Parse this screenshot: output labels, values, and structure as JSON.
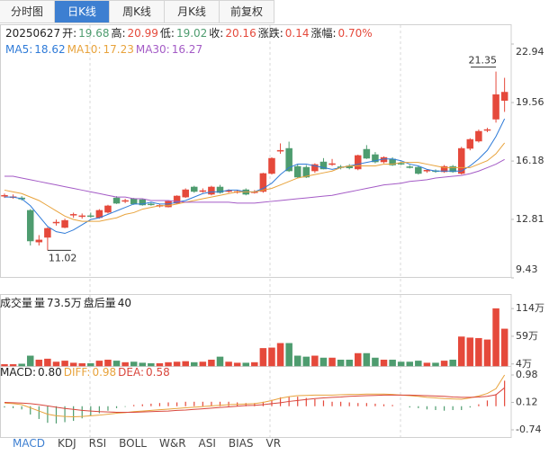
{
  "tabs": [
    "分时图",
    "日K线",
    "周K线",
    "月K线",
    "前复权"
  ],
  "indicator_tabs": [
    "MACD",
    "KDJ",
    "RSI",
    "BOLL",
    "W&R",
    "ASI",
    "BIAS",
    "VR"
  ],
  "chart_data": {
    "type": "candlestick",
    "categories": [
      null,
      null,
      null,
      null,
      null,
      null,
      null,
      null,
      null,
      null,
      null,
      null,
      null,
      null,
      null,
      null,
      null,
      null,
      null,
      null,
      null,
      null,
      null,
      null,
      null,
      null,
      null,
      null,
      null,
      null,
      null,
      null,
      null,
      null,
      null,
      null,
      null,
      null,
      null,
      null,
      null,
      null,
      null,
      null,
      null,
      null,
      null,
      null,
      null,
      null,
      null,
      null,
      null,
      null,
      null,
      null,
      null,
      null,
      "20250627"
    ],
    "ohlc_labels": [
      "开:",
      "高:",
      "低:",
      "收:"
    ],
    "open": [
      14.15,
      14.1,
      14.05,
      13.33,
      11.5,
      11.77,
      12.6,
      12.34,
      13.05,
      13.0,
      13.02,
      12.91,
      13.22,
      14.05,
      13.85,
      14.0,
      13.95,
      13.7,
      13.6,
      13.53,
      13.74,
      14.1,
      14.68,
      14.45,
      14.26,
      14.68,
      14.45,
      14.4,
      14.52,
      14.38,
      14.42,
      15.46,
      16.75,
      16.91,
      15.87,
      15.82,
      15.61,
      16.13,
      16.0,
      15.85,
      15.9,
      15.72,
      16.86,
      16.55,
      16.13,
      16.3,
      16.05,
      15.85,
      15.82,
      15.6,
      15.62,
      15.56,
      15.87,
      15.46,
      16.91,
      17.33,
      17.95,
      18.6,
      19.68
    ],
    "high": [
      14.3,
      14.25,
      14.15,
      13.4,
      11.9,
      12.35,
      12.8,
      12.85,
      13.2,
      13.15,
      13.2,
      13.4,
      13.65,
      14.15,
      14.0,
      14.05,
      14.0,
      13.8,
      13.7,
      13.9,
      14.2,
      14.6,
      14.75,
      14.6,
      14.75,
      14.8,
      14.55,
      14.5,
      14.6,
      14.5,
      15.5,
      16.4,
      17.2,
      17.3,
      16.0,
      15.95,
      16.05,
      16.35,
      16.3,
      15.95,
      16.0,
      16.55,
      17.1,
      16.7,
      16.45,
      16.4,
      16.15,
      15.95,
      15.9,
      15.7,
      15.7,
      15.95,
      15.95,
      17.0,
      17.5,
      18.0,
      18.1,
      21.35,
      20.99
    ],
    "low": [
      14.05,
      14.0,
      13.9,
      11.3,
      11.3,
      11.02,
      12.45,
      12.3,
      12.9,
      12.85,
      12.9,
      12.85,
      13.15,
      13.7,
      13.75,
      13.65,
      13.6,
      13.6,
      13.5,
      13.5,
      13.7,
      14.05,
      14.35,
      14.35,
      14.2,
      14.3,
      14.35,
      14.3,
      14.2,
      14.3,
      14.35,
      15.4,
      16.6,
      15.55,
      15.2,
      15.2,
      15.5,
      15.7,
      15.9,
      15.7,
      15.7,
      15.65,
      16.3,
      16.05,
      16.05,
      15.9,
      15.95,
      15.75,
      15.4,
      15.5,
      15.5,
      15.5,
      15.5,
      15.4,
      16.8,
      17.25,
      17.85,
      18.4,
      19.02
    ],
    "close": [
      14.2,
      14.12,
      13.98,
      11.56,
      11.62,
      12.29,
      12.65,
      12.75,
      13.1,
      13.02,
      13.0,
      13.33,
      13.59,
      13.74,
      13.9,
      13.7,
      13.64,
      13.69,
      13.62,
      13.85,
      14.16,
      14.52,
      14.42,
      14.47,
      14.68,
      14.36,
      14.47,
      14.42,
      14.26,
      14.4,
      15.46,
      16.34,
      16.8,
      15.61,
      15.25,
      15.25,
      15.98,
      15.72,
      16.03,
      15.8,
      15.78,
      16.5,
      16.34,
      16.13,
      16.39,
      15.95,
      16.03,
      15.82,
      15.46,
      15.65,
      15.6,
      15.87,
      15.56,
      16.91,
      17.43,
      17.9,
      18.0,
      20.02,
      20.16
    ],
    "change": {
      "label": "涨跌:",
      "value": 0.14
    },
    "change_pct": {
      "label": "涨幅:",
      "value": 0.7,
      "value_label": "0.70%"
    },
    "up_color": "#e5493b",
    "down_color": "#4e9c6f",
    "ylim": [
      9.43,
      22.94
    ],
    "yticks": [
      22.94,
      19.56,
      16.18,
      12.81,
      9.43
    ],
    "grid": false,
    "ma": [
      {
        "name": "MA5:",
        "color": "#2f7bd8",
        "values": [
          14.1,
          14.1,
          14.0,
          13.6,
          13.0,
          12.4,
          12.1,
          12.0,
          12.2,
          12.5,
          12.8,
          12.9,
          13.1,
          13.3,
          13.5,
          13.7,
          13.7,
          13.8,
          13.7,
          13.7,
          13.8,
          13.9,
          14.1,
          14.3,
          14.4,
          14.4,
          14.5,
          14.5,
          14.4,
          14.4,
          14.6,
          14.9,
          15.4,
          15.8,
          16.0,
          16.0,
          15.9,
          15.8,
          15.7,
          15.8,
          15.9,
          16.0,
          16.1,
          16.2,
          16.3,
          16.3,
          16.2,
          16.0,
          15.9,
          15.7,
          15.6,
          15.6,
          15.6,
          15.6,
          15.9,
          16.3,
          16.8,
          17.6,
          18.62
        ]
      },
      {
        "name": "MA10:",
        "color": "#e8a33c",
        "values": [
          14.5,
          14.4,
          14.3,
          14.1,
          13.9,
          13.6,
          13.3,
          13.0,
          12.8,
          12.7,
          12.7,
          12.7,
          12.8,
          12.9,
          13.1,
          13.2,
          13.4,
          13.5,
          13.6,
          13.6,
          13.7,
          13.8,
          13.9,
          14.0,
          14.1,
          14.2,
          14.3,
          14.4,
          14.4,
          14.4,
          14.5,
          14.6,
          14.8,
          15.0,
          15.2,
          15.3,
          15.4,
          15.5,
          15.6,
          15.8,
          15.9,
          15.9,
          15.9,
          15.9,
          16.0,
          16.0,
          16.1,
          16.1,
          16.1,
          16.0,
          15.9,
          15.8,
          15.8,
          15.8,
          15.8,
          16.0,
          16.2,
          16.6,
          17.23
        ]
      },
      {
        "name": "MA30:",
        "color": "#a45bc6",
        "values": [
          15.3,
          15.3,
          15.2,
          15.1,
          15.0,
          14.9,
          14.8,
          14.7,
          14.6,
          14.5,
          14.4,
          14.3,
          14.2,
          14.1,
          14.1,
          14.0,
          14.0,
          13.9,
          13.9,
          13.9,
          13.85,
          13.8,
          13.8,
          13.8,
          13.8,
          13.8,
          13.8,
          13.75,
          13.75,
          13.75,
          13.8,
          13.85,
          13.9,
          13.95,
          14.0,
          14.05,
          14.1,
          14.15,
          14.2,
          14.3,
          14.4,
          14.5,
          14.6,
          14.7,
          14.8,
          14.85,
          14.9,
          15.0,
          15.05,
          15.1,
          15.2,
          15.25,
          15.3,
          15.35,
          15.45,
          15.6,
          15.8,
          16.0,
          16.27
        ]
      }
    ],
    "volume": {
      "title": "成交量",
      "info": [
        {
          "label": "量",
          "value": 73.5,
          "value_label": "73.5万"
        },
        {
          "label": "盘后量",
          "value": 40
        }
      ],
      "values": [
        3,
        3,
        4,
        20,
        12,
        14,
        8,
        10,
        6,
        5,
        5,
        10,
        12,
        10,
        7,
        8,
        6,
        5,
        5,
        7,
        8,
        9,
        7,
        8,
        12,
        18,
        8,
        6,
        6,
        7,
        35,
        36,
        45,
        45,
        20,
        18,
        20,
        16,
        16,
        12,
        12,
        25,
        25,
        16,
        12,
        12,
        8,
        8,
        10,
        6,
        6,
        10,
        12,
        58,
        56,
        55,
        52,
        114,
        73.5
      ],
      "ylim": [
        0,
        125
      ],
      "yticks": [
        {
          "value": 114,
          "label": "114万"
        },
        {
          "value": 59,
          "label": "59万"
        },
        {
          "value": 4,
          "label": "4万"
        }
      ]
    },
    "macd": {
      "ylim": [
        -0.74,
        0.98
      ],
      "yticks": [
        0.98,
        0.12,
        -0.74
      ],
      "series": [
        {
          "name": "MACD:",
          "color": "#222222",
          "values": [
            -0.04,
            -0.06,
            -0.1,
            -0.26,
            -0.4,
            -0.52,
            -0.54,
            -0.5,
            -0.46,
            -0.38,
            -0.3,
            -0.22,
            -0.14,
            -0.06,
            -0.02,
            0.04,
            0.06,
            0.08,
            0.1,
            0.12,
            0.12,
            0.14,
            0.14,
            0.14,
            0.14,
            0.14,
            0.14,
            0.12,
            0.1,
            0.1,
            0.14,
            0.2,
            0.28,
            0.3,
            0.3,
            0.26,
            0.22,
            0.18,
            0.14,
            0.14,
            0.12,
            0.1,
            0.1,
            0.08,
            0.06,
            0.04,
            0.0,
            -0.04,
            -0.06,
            -0.1,
            -0.12,
            -0.14,
            -0.12,
            -0.12,
            -0.04,
            0.06,
            0.18,
            0.38,
            0.8
          ],
          "value_labels": [
            null,
            null,
            null,
            null,
            null,
            null,
            null,
            null,
            null,
            null,
            null,
            null,
            null,
            null,
            null,
            null,
            null,
            null,
            null,
            null,
            null,
            null,
            null,
            null,
            null,
            null,
            null,
            null,
            null,
            null,
            null,
            null,
            null,
            null,
            null,
            null,
            null,
            null,
            null,
            null,
            null,
            null,
            null,
            null,
            null,
            null,
            null,
            null,
            null,
            null,
            null,
            null,
            null,
            null,
            null,
            null,
            null,
            null,
            "0.80"
          ]
        },
        {
          "name": "DIFF:",
          "color": "#e8a33c",
          "values": [
            0.1,
            0.08,
            0.05,
            -0.05,
            -0.15,
            -0.25,
            -0.3,
            -0.32,
            -0.33,
            -0.32,
            -0.3,
            -0.28,
            -0.25,
            -0.22,
            -0.2,
            -0.17,
            -0.15,
            -0.13,
            -0.11,
            -0.09,
            -0.07,
            -0.05,
            -0.03,
            -0.01,
            0.01,
            0.03,
            0.05,
            0.06,
            0.07,
            0.08,
            0.12,
            0.18,
            0.25,
            0.3,
            0.33,
            0.34,
            0.35,
            0.35,
            0.35,
            0.36,
            0.37,
            0.37,
            0.38,
            0.38,
            0.38,
            0.37,
            0.35,
            0.33,
            0.31,
            0.28,
            0.26,
            0.24,
            0.23,
            0.22,
            0.26,
            0.32,
            0.4,
            0.55,
            0.98
          ]
        },
        {
          "name": "DEA:",
          "color": "#d9463c",
          "values": [
            0.12,
            0.11,
            0.1,
            0.08,
            0.05,
            0.01,
            -0.03,
            -0.07,
            -0.1,
            -0.13,
            -0.15,
            -0.17,
            -0.18,
            -0.19,
            -0.19,
            -0.19,
            -0.18,
            -0.17,
            -0.16,
            -0.15,
            -0.13,
            -0.12,
            -0.1,
            -0.08,
            -0.06,
            -0.04,
            -0.02,
            0.0,
            0.02,
            0.03,
            0.05,
            0.08,
            0.11,
            0.15,
            0.18,
            0.21,
            0.24,
            0.26,
            0.28,
            0.29,
            0.31,
            0.32,
            0.33,
            0.34,
            0.35,
            0.35,
            0.35,
            0.35,
            0.34,
            0.33,
            0.32,
            0.31,
            0.29,
            0.28,
            0.28,
            0.29,
            0.31,
            0.36,
            0.58
          ]
        }
      ]
    }
  }
}
